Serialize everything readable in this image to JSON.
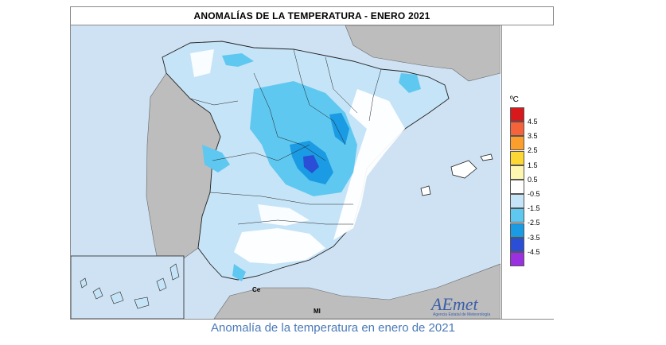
{
  "map": {
    "title": "ANOMALÍAS DE LA TEMPERATURA - ENERO 2021",
    "unit": "ºC",
    "legend": [
      {
        "label": "4.5",
        "color": "#d7191c"
      },
      {
        "label": "3.5",
        "color": "#f4633a"
      },
      {
        "label": "2.5",
        "color": "#fb9e2c"
      },
      {
        "label": "1.5",
        "color": "#fdd835"
      },
      {
        "label": "0.5",
        "color": "#fff7b0"
      },
      {
        "label": "-0.5",
        "color": "#ffffff"
      },
      {
        "label": "-1.5",
        "color": "#c6e4f7"
      },
      {
        "label": "-2.5",
        "color": "#5fc8f0"
      },
      {
        "label": "-3.5",
        "color": "#1a9be3"
      },
      {
        "label": "-4.5",
        "color": "#2a4fd6"
      },
      {
        "label": "",
        "color": "#9b30e0"
      }
    ],
    "place_labels": {
      "ceuta": "Ce",
      "melilla": "Ml"
    },
    "logo": {
      "name": "AEmet",
      "subtitle": "Agencia Estatal de Meteorología"
    }
  },
  "caption": "Anomalía de la temperatura en enero de 2021"
}
